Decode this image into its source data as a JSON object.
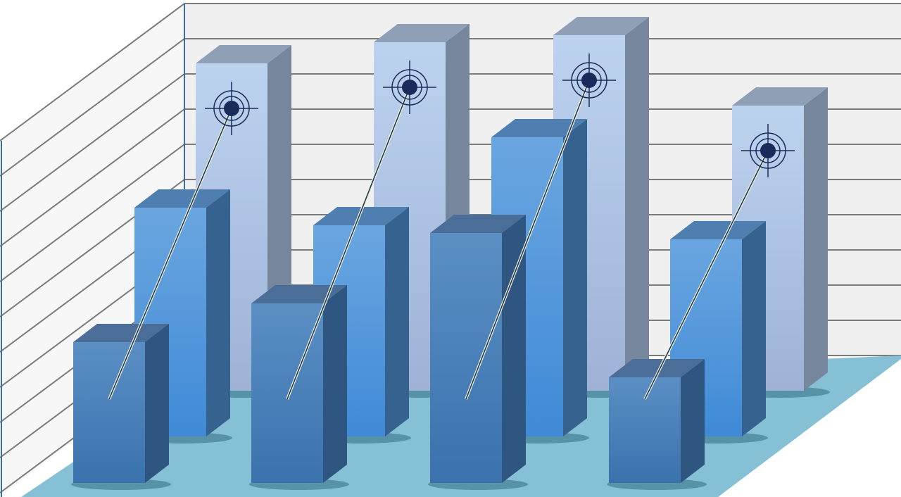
{
  "chart_data": {
    "type": "bar",
    "style": "3d-clustered",
    "categories": [
      "",
      "",
      "",
      ""
    ],
    "series": [
      {
        "values": [
          9.3,
          9.9,
          10.1,
          8.1
        ],
        "color": "#b3cdec",
        "targets": true
      },
      {
        "values": [
          6.5,
          6.0,
          8.5,
          5.6
        ],
        "color": "#5ba0e2"
      },
      {
        "values": [
          4.0,
          5.1,
          7.1,
          3.0
        ],
        "color": "#4a7fb6"
      }
    ],
    "ylim": [
      0,
      11
    ],
    "grid": true,
    "legend": "none",
    "colors": {
      "wall": "#f0f0f0",
      "gridline": "#7a7a7a",
      "floor": "#86c0d4",
      "target": "#1a2a5a"
    }
  }
}
